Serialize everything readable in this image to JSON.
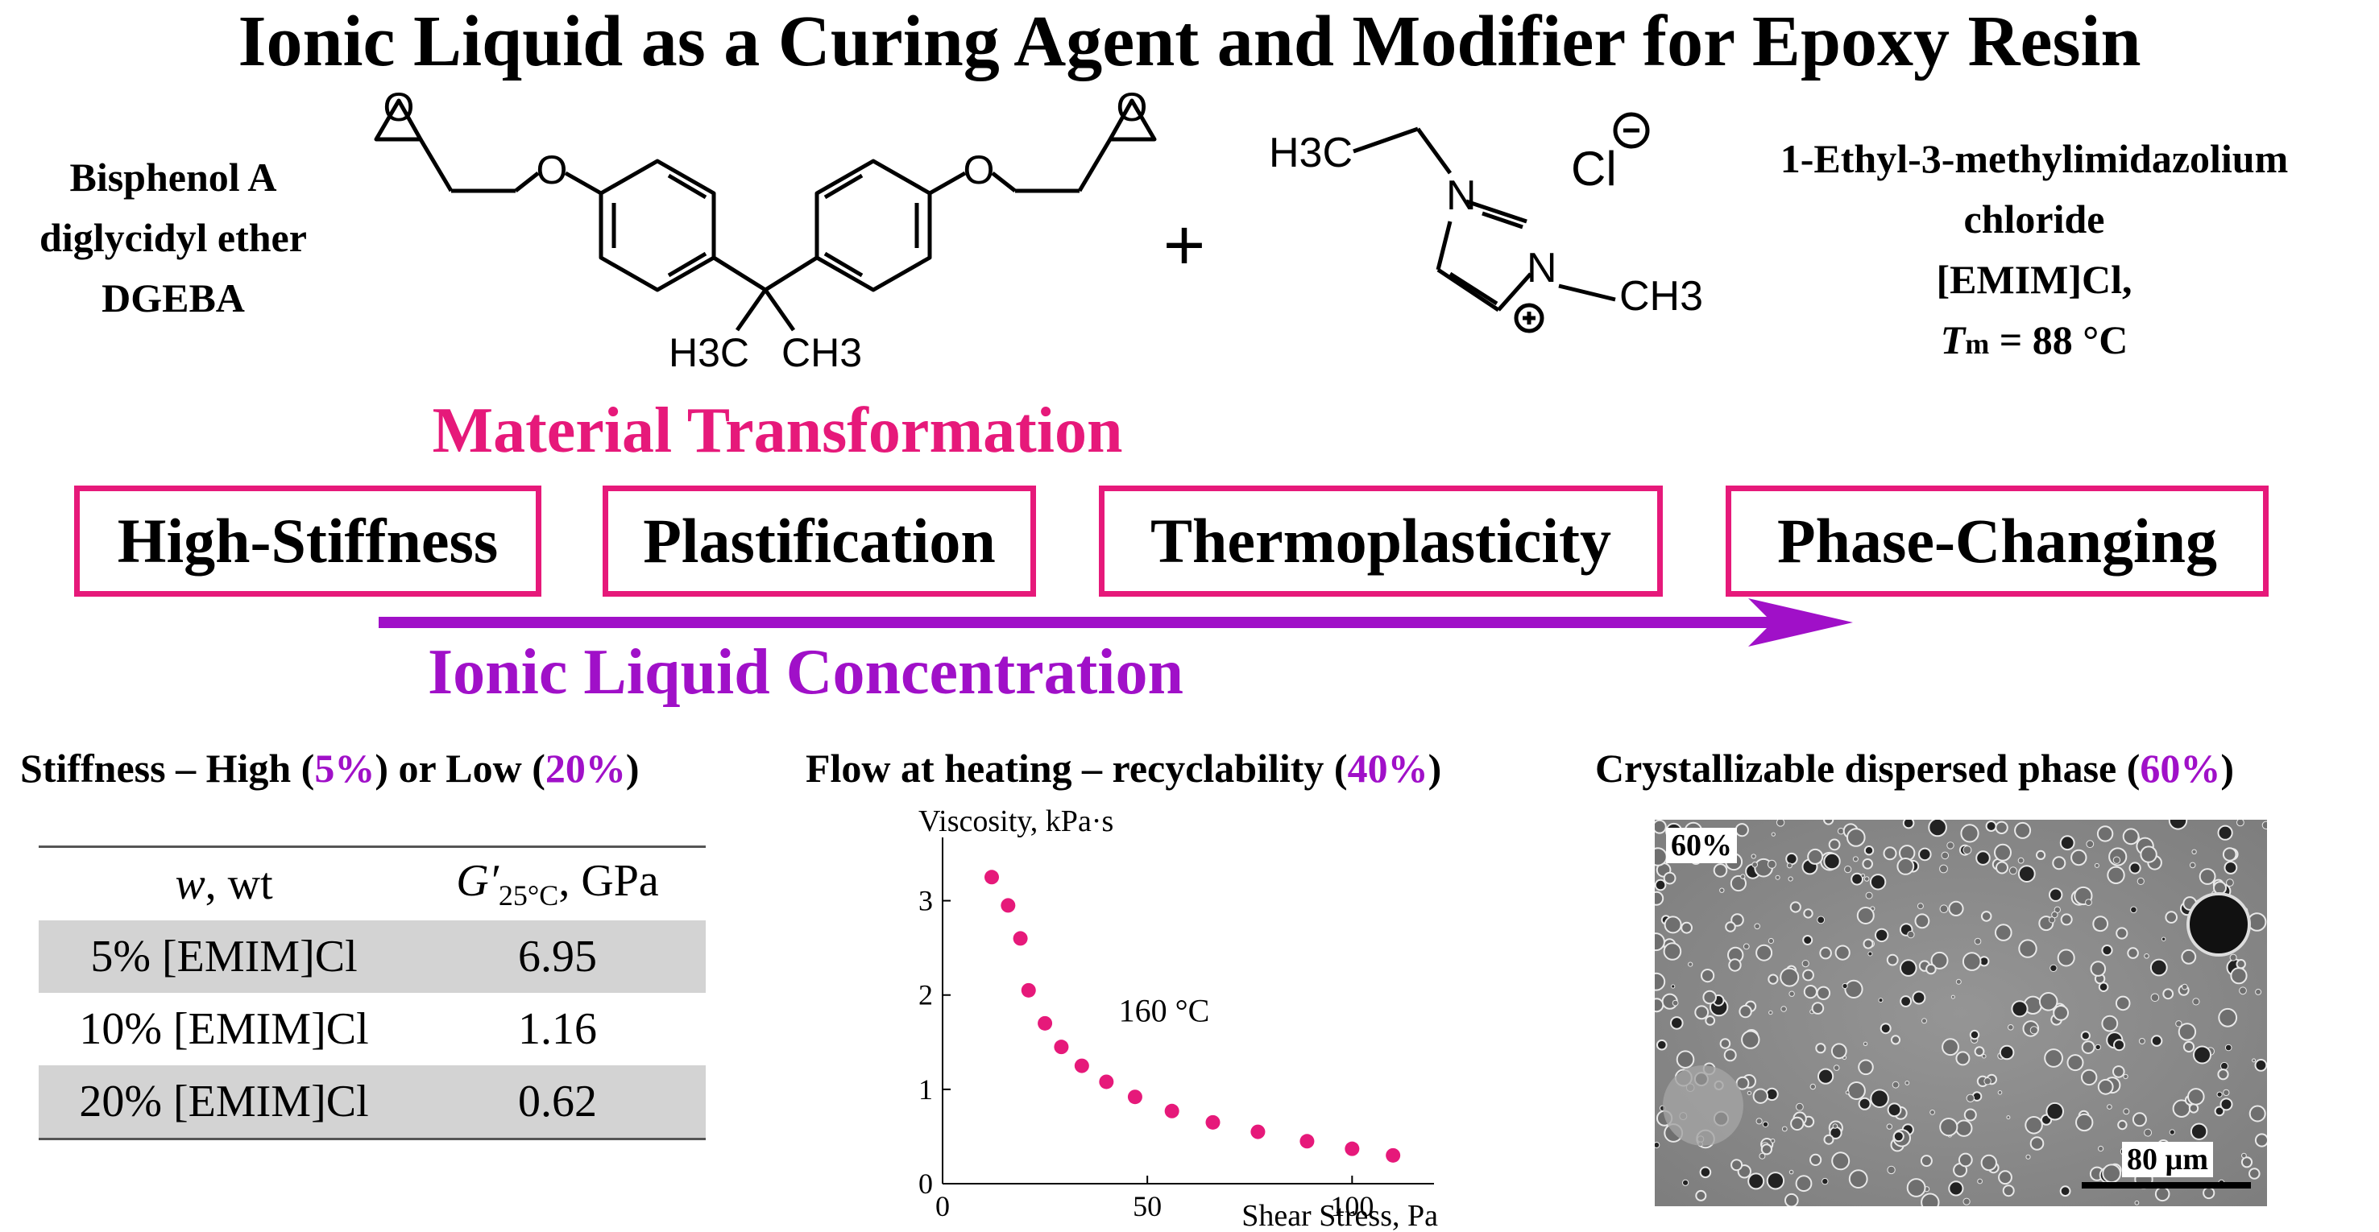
{
  "title": "Ionic Liquid as a Curing Agent and Modifier for Epoxy Resin",
  "dgeba": {
    "line1": "Bisphenol A",
    "line2": "diglycidyl ether",
    "line3": "DGEBA"
  },
  "structure_labels": {
    "o_left": "O",
    "o_right": "O",
    "o_ep_left": "O",
    "o_ep_right": "O",
    "ch3_left": "H3C",
    "ch3_right": "CH3",
    "plus": "+",
    "h3c_top": "H3C",
    "n1": "N",
    "n3": "N",
    "ch3_n": "CH3",
    "cl": "Cl"
  },
  "emim": {
    "line1": "1-Ethyl-3-methylimidazolium",
    "line2": "chloride",
    "line3": "[EMIM]Cl,",
    "tm_symbol": "T",
    "tm_sub": "m",
    "tm_value": " = 88 °C"
  },
  "material_transformation": "Material Transformation",
  "stages": [
    "High-Stiffness",
    "Plastification",
    "Thermoplasticity",
    "Phase-Changing"
  ],
  "ionic_liquid_concentration": "Ionic Liquid Concentration",
  "sections": {
    "stiffness": {
      "prefix": "Stiffness – High (",
      "high": "5%",
      "mid": ") or Low (",
      "low": "20%",
      "suffix": ")"
    },
    "flow": {
      "prefix": "Flow at heating – recyclability (",
      "pct": "40%",
      "suffix": ")"
    },
    "crystal": {
      "prefix": "Crystallizable dispersed phase (",
      "pct": "60%",
      "suffix": ")"
    }
  },
  "table": {
    "col1_header": "w, wt",
    "col1_italic": "w",
    "col1_rest": ", wt",
    "col2_symbol": "G′",
    "col2_sub": "25°C",
    "col2_unit": ", GPa",
    "rows": [
      {
        "label": "5% [EMIM]Cl",
        "value": "6.95"
      },
      {
        "label": "10% [EMIM]Cl",
        "value": "1.16"
      },
      {
        "label": "20% [EMIM]Cl",
        "value": "0.62"
      }
    ]
  },
  "chart_data": {
    "type": "scatter",
    "title": "",
    "xlabel": "Shear Stress, Pa",
    "ylabel": "Viscosity, kPa·s",
    "annotation": "160 °C",
    "xlim": [
      0,
      120
    ],
    "ylim": [
      0,
      3.5
    ],
    "xticks": [
      0,
      50,
      100
    ],
    "yticks": [
      0,
      1,
      2,
      3
    ],
    "grid": false,
    "color": "#e6197a",
    "series": [
      {
        "x": [
          12,
          16,
          19,
          21,
          25,
          29,
          34,
          40,
          47,
          56,
          66,
          77,
          89,
          100,
          110
        ],
        "y": [
          3.25,
          2.95,
          2.6,
          2.05,
          1.7,
          1.45,
          1.25,
          1.08,
          0.92,
          0.77,
          0.65,
          0.55,
          0.45,
          0.37,
          0.3
        ]
      }
    ]
  },
  "sem": {
    "label": "60%",
    "scale_bar": "80 µm"
  },
  "colors": {
    "pink": "#e6197a",
    "purple": "#a010c8",
    "table_shade": "#d3d3d3"
  }
}
